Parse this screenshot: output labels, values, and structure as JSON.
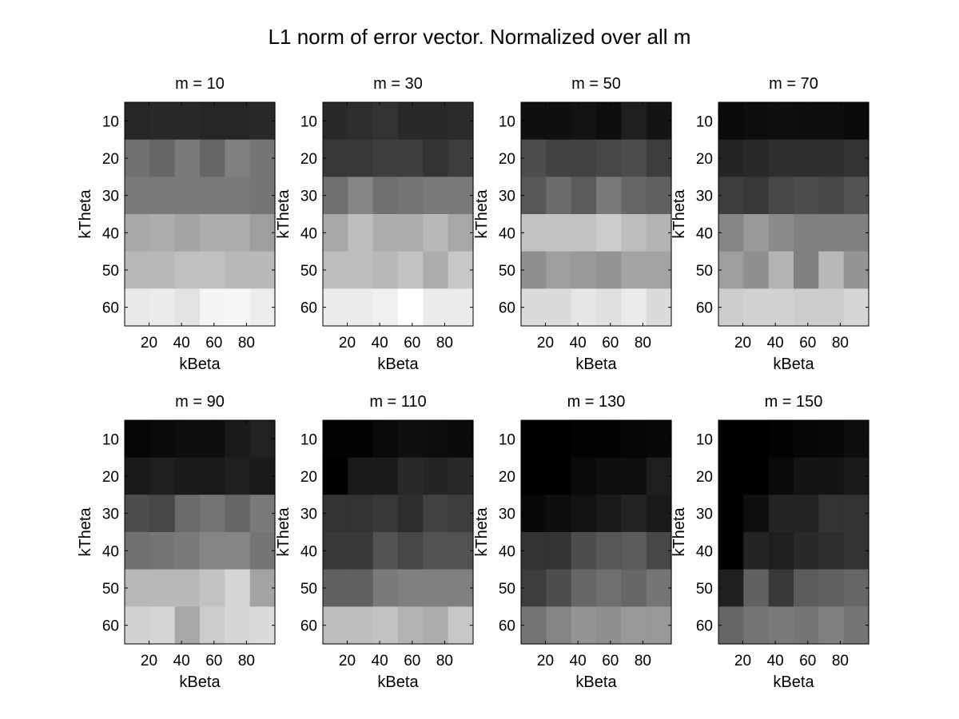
{
  "figure": {
    "title": "L1 norm of error vector. Normalized over all m"
  },
  "chart_data": [
    {
      "type": "heatmap",
      "title": "m = 10",
      "xlabel": "kBeta",
      "ylabel": "kTheta",
      "x_ticks": [
        "20",
        "40",
        "60",
        "80"
      ],
      "y_ticks": [
        "10",
        "20",
        "30",
        "40",
        "50",
        "60"
      ],
      "x_centers": [
        10,
        25,
        40,
        55,
        70,
        85
      ],
      "y_centers": [
        10,
        20,
        30,
        40,
        50,
        60
      ],
      "xlim": [
        5,
        97.5
      ],
      "ylim": [
        5,
        65
      ],
      "colormap": "gray",
      "values": [
        [
          0.15,
          0.16,
          0.16,
          0.15,
          0.15,
          0.16
        ],
        [
          0.44,
          0.4,
          0.48,
          0.4,
          0.5,
          0.46
        ],
        [
          0.48,
          0.48,
          0.48,
          0.48,
          0.48,
          0.46
        ],
        [
          0.66,
          0.68,
          0.64,
          0.68,
          0.68,
          0.62
        ],
        [
          0.72,
          0.72,
          0.75,
          0.75,
          0.72,
          0.73
        ],
        [
          0.91,
          0.92,
          0.89,
          0.96,
          0.97,
          0.93
        ]
      ]
    },
    {
      "type": "heatmap",
      "title": "m = 30",
      "xlabel": "kBeta",
      "ylabel": "kTheta",
      "x_ticks": [
        "20",
        "40",
        "60",
        "80"
      ],
      "y_ticks": [
        "10",
        "20",
        "30",
        "40",
        "50",
        "60"
      ],
      "x_centers": [
        10,
        25,
        40,
        55,
        70,
        85
      ],
      "y_centers": [
        10,
        20,
        30,
        40,
        50,
        60
      ],
      "xlim": [
        5,
        97.5
      ],
      "ylim": [
        5,
        65
      ],
      "colormap": "gray",
      "values": [
        [
          0.16,
          0.18,
          0.2,
          0.16,
          0.16,
          0.17
        ],
        [
          0.22,
          0.22,
          0.24,
          0.24,
          0.2,
          0.24
        ],
        [
          0.44,
          0.52,
          0.44,
          0.46,
          0.48,
          0.48
        ],
        [
          0.66,
          0.74,
          0.68,
          0.68,
          0.72,
          0.66
        ],
        [
          0.74,
          0.74,
          0.72,
          0.76,
          0.68,
          0.78
        ],
        [
          0.92,
          0.92,
          0.94,
          1.0,
          0.92,
          0.92
        ]
      ]
    },
    {
      "type": "heatmap",
      "title": "m = 50",
      "xlabel": "kBeta",
      "ylabel": "kTheta",
      "x_ticks": [
        "20",
        "40",
        "60",
        "80"
      ],
      "y_ticks": [
        "10",
        "20",
        "30",
        "40",
        "50",
        "60"
      ],
      "x_centers": [
        10,
        25,
        40,
        55,
        70,
        85
      ],
      "y_centers": [
        10,
        20,
        30,
        40,
        50,
        60
      ],
      "xlim": [
        5,
        97.5
      ],
      "ylim": [
        5,
        65
      ],
      "colormap": "gray",
      "values": [
        [
          0.06,
          0.06,
          0.07,
          0.05,
          0.12,
          0.08
        ],
        [
          0.3,
          0.26,
          0.26,
          0.28,
          0.3,
          0.24
        ],
        [
          0.34,
          0.42,
          0.36,
          0.48,
          0.4,
          0.38
        ],
        [
          0.76,
          0.76,
          0.76,
          0.8,
          0.74,
          0.7
        ],
        [
          0.56,
          0.62,
          0.6,
          0.58,
          0.64,
          0.64
        ],
        [
          0.86,
          0.86,
          0.9,
          0.88,
          0.92,
          0.86
        ]
      ]
    },
    {
      "type": "heatmap",
      "title": "m = 70",
      "xlabel": "kBeta",
      "ylabel": "kTheta",
      "x_ticks": [
        "20",
        "40",
        "60",
        "80"
      ],
      "y_ticks": [
        "10",
        "20",
        "30",
        "40",
        "50",
        "60"
      ],
      "x_centers": [
        10,
        25,
        40,
        55,
        70,
        85
      ],
      "y_centers": [
        10,
        20,
        30,
        40,
        50,
        60
      ],
      "xlim": [
        5,
        97.5
      ],
      "ylim": [
        5,
        65
      ],
      "colormap": "gray",
      "values": [
        [
          0.04,
          0.05,
          0.06,
          0.05,
          0.05,
          0.04
        ],
        [
          0.14,
          0.16,
          0.18,
          0.18,
          0.18,
          0.2
        ],
        [
          0.24,
          0.22,
          0.28,
          0.3,
          0.28,
          0.32
        ],
        [
          0.52,
          0.6,
          0.54,
          0.5,
          0.5,
          0.5
        ],
        [
          0.62,
          0.56,
          0.7,
          0.5,
          0.72,
          0.58
        ],
        [
          0.8,
          0.82,
          0.82,
          0.8,
          0.8,
          0.84
        ]
      ]
    },
    {
      "type": "heatmap",
      "title": "m = 90",
      "xlabel": "kBeta",
      "ylabel": "kTheta",
      "x_ticks": [
        "20",
        "40",
        "60",
        "80"
      ],
      "y_ticks": [
        "10",
        "20",
        "30",
        "40",
        "50",
        "60"
      ],
      "x_centers": [
        10,
        25,
        40,
        55,
        70,
        85
      ],
      "y_centers": [
        10,
        20,
        30,
        40,
        50,
        60
      ],
      "xlim": [
        5,
        97.5
      ],
      "ylim": [
        5,
        65
      ],
      "colormap": "gray",
      "values": [
        [
          0.02,
          0.04,
          0.05,
          0.05,
          0.1,
          0.13
        ],
        [
          0.1,
          0.12,
          0.1,
          0.1,
          0.12,
          0.1
        ],
        [
          0.3,
          0.28,
          0.42,
          0.46,
          0.4,
          0.48
        ],
        [
          0.44,
          0.46,
          0.48,
          0.52,
          0.52,
          0.46
        ],
        [
          0.72,
          0.72,
          0.72,
          0.76,
          0.84,
          0.64
        ],
        [
          0.82,
          0.84,
          0.66,
          0.8,
          0.84,
          0.86
        ]
      ]
    },
    {
      "type": "heatmap",
      "title": "m = 110",
      "xlabel": "kBeta",
      "ylabel": "kTheta",
      "x_ticks": [
        "20",
        "40",
        "60",
        "80"
      ],
      "y_ticks": [
        "10",
        "20",
        "30",
        "40",
        "50",
        "60"
      ],
      "x_centers": [
        10,
        25,
        40,
        55,
        70,
        85
      ],
      "y_centers": [
        10,
        20,
        30,
        40,
        50,
        60
      ],
      "xlim": [
        5,
        97.5
      ],
      "ylim": [
        5,
        65
      ],
      "colormap": "gray",
      "values": [
        [
          0.01,
          0.01,
          0.04,
          0.06,
          0.05,
          0.04
        ],
        [
          0.0,
          0.1,
          0.1,
          0.16,
          0.14,
          0.16
        ],
        [
          0.2,
          0.2,
          0.22,
          0.18,
          0.26,
          0.24
        ],
        [
          0.22,
          0.22,
          0.32,
          0.28,
          0.32,
          0.32
        ],
        [
          0.38,
          0.38,
          0.48,
          0.5,
          0.5,
          0.5
        ],
        [
          0.74,
          0.74,
          0.76,
          0.7,
          0.68,
          0.78
        ]
      ]
    },
    {
      "type": "heatmap",
      "title": "m = 130",
      "xlabel": "kBeta",
      "ylabel": "kTheta",
      "x_ticks": [
        "20",
        "40",
        "60",
        "80"
      ],
      "y_ticks": [
        "10",
        "20",
        "30",
        "40",
        "50",
        "60"
      ],
      "x_centers": [
        10,
        25,
        40,
        55,
        70,
        85
      ],
      "y_centers": [
        10,
        20,
        30,
        40,
        50,
        60
      ],
      "xlim": [
        5,
        97.5
      ],
      "ylim": [
        5,
        65
      ],
      "colormap": "gray",
      "values": [
        [
          0.0,
          0.0,
          0.01,
          0.01,
          0.02,
          0.03
        ],
        [
          0.0,
          0.0,
          0.04,
          0.06,
          0.06,
          0.12
        ],
        [
          0.03,
          0.05,
          0.07,
          0.1,
          0.14,
          0.1
        ],
        [
          0.2,
          0.2,
          0.3,
          0.34,
          0.36,
          0.28
        ],
        [
          0.24,
          0.3,
          0.4,
          0.44,
          0.4,
          0.46
        ],
        [
          0.46,
          0.52,
          0.58,
          0.56,
          0.6,
          0.6
        ]
      ]
    },
    {
      "type": "heatmap",
      "title": "m = 150",
      "xlabel": "kBeta",
      "ylabel": "kTheta",
      "x_ticks": [
        "20",
        "40",
        "60",
        "80"
      ],
      "y_ticks": [
        "10",
        "20",
        "30",
        "40",
        "50",
        "60"
      ],
      "x_centers": [
        10,
        25,
        40,
        55,
        70,
        85
      ],
      "y_centers": [
        10,
        20,
        30,
        40,
        50,
        60
      ],
      "xlim": [
        5,
        97.5
      ],
      "ylim": [
        5,
        65
      ],
      "colormap": "gray",
      "values": [
        [
          0.0,
          0.0,
          0.01,
          0.02,
          0.03,
          0.05
        ],
        [
          0.0,
          0.0,
          0.04,
          0.08,
          0.08,
          0.1
        ],
        [
          0.0,
          0.06,
          0.14,
          0.14,
          0.2,
          0.2
        ],
        [
          0.0,
          0.14,
          0.12,
          0.16,
          0.18,
          0.2
        ],
        [
          0.12,
          0.38,
          0.22,
          0.36,
          0.38,
          0.4
        ],
        [
          0.4,
          0.46,
          0.48,
          0.46,
          0.5,
          0.46
        ]
      ]
    }
  ]
}
